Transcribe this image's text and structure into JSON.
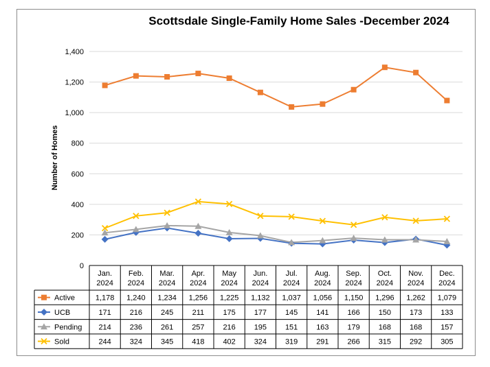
{
  "chart_data": {
    "type": "line",
    "title": "Scottsdale Single-Family Home Sales -December 2024",
    "ylabel": "Number of Homes",
    "xlabel": "",
    "ylim": [
      0,
      1400
    ],
    "yticks": [
      "0",
      "200",
      "400",
      "600",
      "800",
      "1,000",
      "1,200",
      "1,400"
    ],
    "ytick_values": [
      0,
      200,
      400,
      600,
      800,
      1000,
      1200,
      1400
    ],
    "grid": true,
    "legend": "data-table",
    "categories": [
      {
        "month": "Jan.",
        "year": "2024"
      },
      {
        "month": "Feb.",
        "year": "2024"
      },
      {
        "month": "Mar.",
        "year": "2024"
      },
      {
        "month": "Apr.",
        "year": "2024"
      },
      {
        "month": "May",
        "year": "2024"
      },
      {
        "month": "Jun.",
        "year": "2024"
      },
      {
        "month": "Jul.",
        "year": "2024"
      },
      {
        "month": "Aug.",
        "year": "2024"
      },
      {
        "month": "Sep.",
        "year": "2024"
      },
      {
        "month": "Oct.",
        "year": "2024"
      },
      {
        "month": "Nov.",
        "year": "2024"
      },
      {
        "month": "Dec.",
        "year": "2024"
      }
    ],
    "series": [
      {
        "name": "Active",
        "color": "#ED7D31",
        "marker": "square",
        "values": [
          1178,
          1240,
          1234,
          1256,
          1225,
          1132,
          1037,
          1056,
          1150,
          1296,
          1262,
          1079
        ],
        "labels": [
          "1,178",
          "1,240",
          "1,234",
          "1,256",
          "1,225",
          "1,132",
          "1,037",
          "1,056",
          "1,150",
          "1,296",
          "1,262",
          "1,079"
        ]
      },
      {
        "name": "UCB",
        "color": "#4472C4",
        "marker": "diamond",
        "values": [
          171,
          216,
          245,
          211,
          175,
          177,
          145,
          141,
          166,
          150,
          173,
          133
        ],
        "labels": [
          "171",
          "216",
          "245",
          "211",
          "175",
          "177",
          "145",
          "141",
          "166",
          "150",
          "173",
          "133"
        ]
      },
      {
        "name": "Pending",
        "color": "#A5A5A5",
        "marker": "triangle",
        "values": [
          214,
          236,
          261,
          257,
          216,
          195,
          151,
          163,
          179,
          168,
          168,
          157
        ],
        "labels": [
          "214",
          "236",
          "261",
          "257",
          "216",
          "195",
          "151",
          "163",
          "179",
          "168",
          "168",
          "157"
        ]
      },
      {
        "name": "Sold",
        "color": "#FFC000",
        "marker": "x",
        "values": [
          244,
          324,
          345,
          418,
          402,
          324,
          319,
          291,
          266,
          315,
          292,
          305
        ],
        "labels": [
          "244",
          "324",
          "345",
          "418",
          "402",
          "324",
          "319",
          "291",
          "266",
          "315",
          "292",
          "305"
        ]
      }
    ]
  }
}
